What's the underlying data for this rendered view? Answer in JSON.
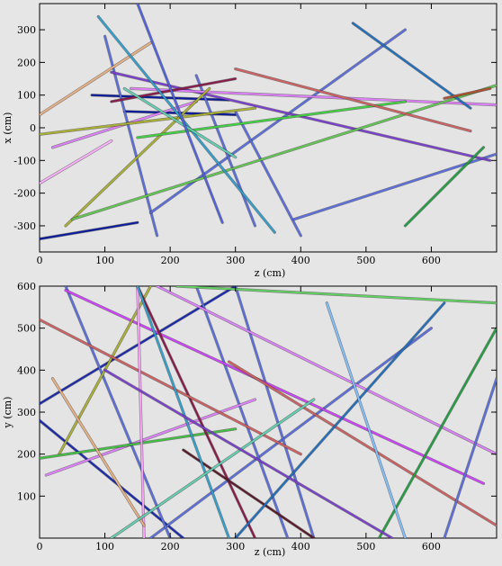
{
  "chart_data": [
    {
      "type": "scatter",
      "panel": "top",
      "xlabel": "z (cm)",
      "ylabel": "x (cm)",
      "xlim": [
        0,
        700
      ],
      "ylim": [
        -380,
        380
      ],
      "xticks": [
        0,
        100,
        200,
        300,
        400,
        500,
        600
      ],
      "yticks": [
        -300,
        -200,
        -100,
        0,
        100,
        200,
        300
      ],
      "grid": false,
      "legend": "none",
      "series": [
        {
          "color": "#0a1a9c",
          "x": [
            0,
            150
          ],
          "y": [
            -340,
            -290
          ]
        },
        {
          "color": "#0a1a9c",
          "x": [
            80,
            290
          ],
          "y": [
            100,
            85
          ]
        },
        {
          "color": "#0a1a9c",
          "x": [
            130,
            300
          ],
          "y": [
            50,
            40
          ]
        },
        {
          "color": "#5a6ee0",
          "x": [
            100,
            180
          ],
          "y": [
            280,
            -330
          ]
        },
        {
          "color": "#5a6ee0",
          "x": [
            170,
            560
          ],
          "y": [
            -260,
            300
          ]
        },
        {
          "color": "#5a6ee0",
          "x": [
            240,
            330
          ],
          "y": [
            160,
            -300
          ]
        },
        {
          "color": "#5a6ee0",
          "x": [
            300,
            400
          ],
          "y": [
            50,
            -330
          ]
        },
        {
          "color": "#5a6ee0",
          "x": [
            390,
            700
          ],
          "y": [
            -280,
            -80
          ]
        },
        {
          "color": "#7a3fd0",
          "x": [
            110,
            690
          ],
          "y": [
            170,
            -100
          ]
        },
        {
          "color": "#e080ff",
          "x": [
            140,
            700
          ],
          "y": [
            120,
            70
          ]
        },
        {
          "color": "#e080ff",
          "x": [
            20,
            240
          ],
          "y": [
            -60,
            80
          ]
        },
        {
          "color": "#aab030",
          "x": [
            0,
            330
          ],
          "y": [
            -20,
            60
          ]
        },
        {
          "color": "#aab030",
          "x": [
            40,
            260
          ],
          "y": [
            -300,
            120
          ]
        },
        {
          "color": "#60c850",
          "x": [
            50,
            700
          ],
          "y": [
            -280,
            130
          ]
        },
        {
          "color": "#40d040",
          "x": [
            150,
            560
          ],
          "y": [
            -30,
            80
          ]
        },
        {
          "color": "#8a1a4a",
          "x": [
            110,
            300
          ],
          "y": [
            80,
            150
          ]
        },
        {
          "color": "#d06060",
          "x": [
            300,
            660
          ],
          "y": [
            180,
            -10
          ]
        },
        {
          "color": "#e8b080",
          "x": [
            0,
            170
          ],
          "y": [
            40,
            260
          ]
        },
        {
          "color": "#30a0d0",
          "x": [
            90,
            360
          ],
          "y": [
            340,
            -320
          ]
        },
        {
          "color": "#60d0b0",
          "x": [
            130,
            300
          ],
          "y": [
            120,
            -90
          ]
        },
        {
          "color": "#5060e0",
          "x": [
            150,
            280
          ],
          "y": [
            380,
            -290
          ]
        },
        {
          "color": "#ffb0ff",
          "x": [
            0,
            110
          ],
          "y": [
            -170,
            -40
          ]
        },
        {
          "color": "#2070c0",
          "x": [
            480,
            660
          ],
          "y": [
            320,
            60
          ]
        },
        {
          "color": "#20a040",
          "x": [
            560,
            680
          ],
          "y": [
            -300,
            -60
          ]
        },
        {
          "color": "#b05030",
          "x": [
            620,
            690
          ],
          "y": [
            90,
            120
          ]
        }
      ]
    },
    {
      "type": "scatter",
      "panel": "bottom",
      "xlabel": "z (cm)",
      "ylabel": "y (cm)",
      "xlim": [
        0,
        700
      ],
      "ylim": [
        0,
        600
      ],
      "xticks": [
        0,
        100,
        200,
        300,
        400,
        500,
        600
      ],
      "yticks": [
        100,
        200,
        300,
        400,
        500,
        600
      ],
      "grid": false,
      "legend": "none",
      "series": [
        {
          "color": "#1a2ab0",
          "x": [
            0,
            300
          ],
          "y": [
            320,
            600
          ]
        },
        {
          "color": "#1a2ab0",
          "x": [
            0,
            220
          ],
          "y": [
            280,
            0
          ]
        },
        {
          "color": "#5a6ee0",
          "x": [
            170,
            600
          ],
          "y": [
            0,
            500
          ]
        },
        {
          "color": "#5a6ee0",
          "x": [
            40,
            200
          ],
          "y": [
            600,
            0
          ]
        },
        {
          "color": "#5a6ee0",
          "x": [
            240,
            380
          ],
          "y": [
            600,
            0
          ]
        },
        {
          "color": "#5a6ee0",
          "x": [
            420,
            300
          ],
          "y": [
            0,
            600
          ]
        },
        {
          "color": "#d040ff",
          "x": [
            40,
            680
          ],
          "y": [
            590,
            130
          ]
        },
        {
          "color": "#e080ff",
          "x": [
            10,
            330
          ],
          "y": [
            150,
            330
          ]
        },
        {
          "color": "#e080ff",
          "x": [
            180,
            700
          ],
          "y": [
            600,
            200
          ]
        },
        {
          "color": "#aab030",
          "x": [
            30,
            170
          ],
          "y": [
            200,
            600
          ]
        },
        {
          "color": "#40c040",
          "x": [
            0,
            300
          ],
          "y": [
            190,
            260
          ]
        },
        {
          "color": "#60d060",
          "x": [
            210,
            700
          ],
          "y": [
            600,
            560
          ]
        },
        {
          "color": "#8a1a4a",
          "x": [
            150,
            330
          ],
          "y": [
            600,
            0
          ]
        },
        {
          "color": "#5a1a2a",
          "x": [
            220,
            420
          ],
          "y": [
            210,
            0
          ]
        },
        {
          "color": "#d06060",
          "x": [
            0,
            400
          ],
          "y": [
            520,
            200
          ]
        },
        {
          "color": "#d06060",
          "x": [
            290,
            700
          ],
          "y": [
            420,
            30
          ]
        },
        {
          "color": "#ffa0ff",
          "x": [
            150,
            160
          ],
          "y": [
            600,
            0
          ]
        },
        {
          "color": "#e8b080",
          "x": [
            20,
            160
          ],
          "y": [
            380,
            30
          ]
        },
        {
          "color": "#30a0d0",
          "x": [
            150,
            290
          ],
          "y": [
            600,
            0
          ]
        },
        {
          "color": "#60d0b0",
          "x": [
            110,
            420
          ],
          "y": [
            0,
            330
          ]
        },
        {
          "color": "#2070c0",
          "x": [
            300,
            620
          ],
          "y": [
            0,
            560
          ]
        },
        {
          "color": "#20a040",
          "x": [
            520,
            700
          ],
          "y": [
            0,
            500
          ]
        },
        {
          "color": "#7a3fd0",
          "x": [
            100,
            540
          ],
          "y": [
            400,
            0
          ]
        },
        {
          "color": "#80c0ff",
          "x": [
            440,
            560
          ],
          "y": [
            560,
            0
          ]
        },
        {
          "color": "#5a6ee0",
          "x": [
            620,
            700
          ],
          "y": [
            0,
            380
          ]
        }
      ]
    }
  ]
}
